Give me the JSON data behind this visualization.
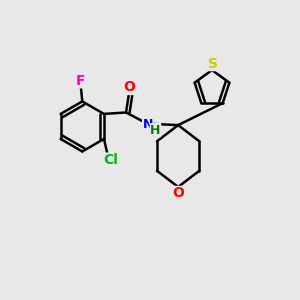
{
  "background_color": "#e8e8e8",
  "bond_color": "#000000",
  "bond_width": 1.8,
  "atom_colors": {
    "F": "#ff00cc",
    "O_carbonyl": "#ff0000",
    "N": "#0000ff",
    "H": "#008000",
    "Cl": "#00bb00",
    "S": "#cccc00",
    "O_ring": "#ff0000"
  },
  "font_size": 10
}
